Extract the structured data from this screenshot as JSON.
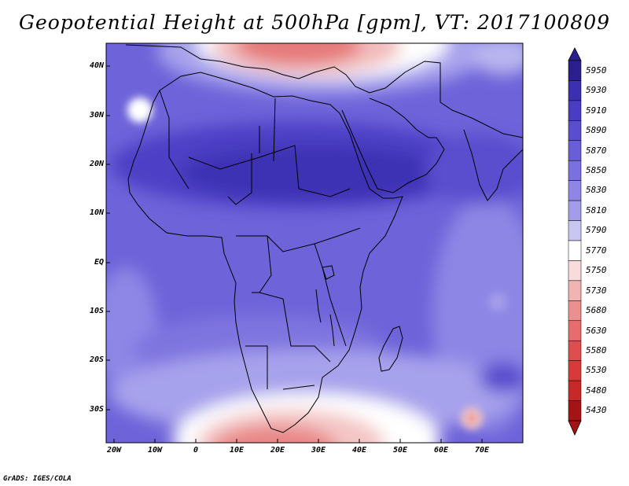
{
  "title": "Geopotential Height at 500hPa [gpm], VT: 2017100809",
  "credit": "GrADS: IGES/COLA",
  "lat_labels": [
    "40N",
    "30N",
    "20N",
    "10N",
    "EQ",
    "10S",
    "20S",
    "30S"
  ],
  "lon_labels": [
    "20W",
    "10W",
    "0",
    "10E",
    "20E",
    "30E",
    "40E",
    "50E",
    "60E",
    "70E"
  ],
  "colorbar": {
    "levels": [
      "5950",
      "5930",
      "5910",
      "5890",
      "5870",
      "5850",
      "5830",
      "5810",
      "5790",
      "5770",
      "5750",
      "5730",
      "5680",
      "5630",
      "5580",
      "5530",
      "5480",
      "5430"
    ],
    "colors": [
      "#2a1f8c",
      "#3c2fb0",
      "#4a3dc4",
      "#5a4dd0",
      "#6a5ed8",
      "#7b70df",
      "#8e85e6",
      "#a39de9",
      "#c9c7f1",
      "#ffffff",
      "#f8dcdc",
      "#f2b3b3",
      "#ec8f8f",
      "#e56d6d",
      "#de4e4e",
      "#d83a3a",
      "#c72828",
      "#a51414"
    ]
  }
}
